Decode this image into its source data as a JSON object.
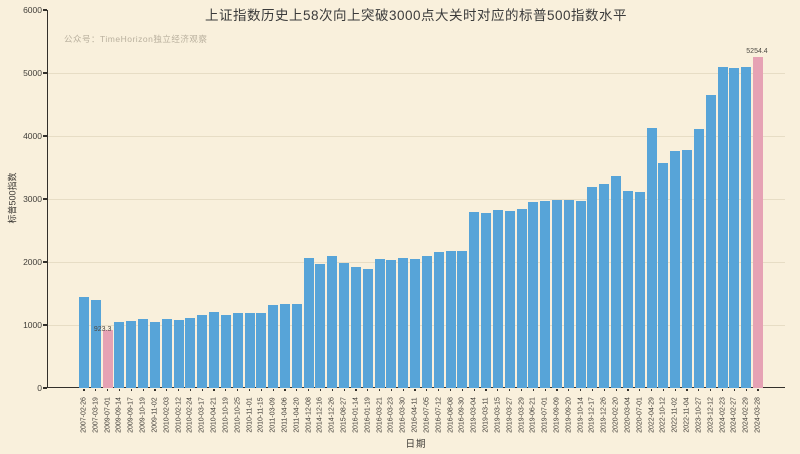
{
  "chart_data": {
    "type": "bar",
    "title": "上证指数历史上58次向上突破3000点大关时对应的标普500指数水平",
    "watermark": "公众号：TimeHorizon独立经济观察",
    "xlabel": "日期",
    "ylabel": "标普500指数",
    "ylim": [
      0,
      6000
    ],
    "yticks": [
      0,
      1000,
      2000,
      3000,
      4000,
      5000,
      6000
    ],
    "grid": "horizontal",
    "legend_position": "none",
    "categories": [
      "2007-02-26",
      "2007-03-19",
      "2009-07-01",
      "2009-09-14",
      "2009-09-17",
      "2009-10-19",
      "2009-11-02",
      "2010-02-03",
      "2010-02-12",
      "2010-02-24",
      "2010-03-17",
      "2010-04-21",
      "2010-10-19",
      "2010-10-25",
      "2010-11-01",
      "2010-11-15",
      "2011-03-09",
      "2011-04-06",
      "2011-04-20",
      "2014-12-08",
      "2014-12-16",
      "2014-12-26",
      "2015-08-27",
      "2016-01-14",
      "2016-01-19",
      "2016-03-21",
      "2016-03-23",
      "2016-03-30",
      "2016-04-11",
      "2016-07-05",
      "2016-07-12",
      "2016-08-08",
      "2016-09-30",
      "2019-03-04",
      "2019-03-11",
      "2019-03-15",
      "2019-03-27",
      "2019-03-29",
      "2019-06-21",
      "2019-07-01",
      "2019-09-09",
      "2019-09-20",
      "2019-10-14",
      "2019-12-17",
      "2019-12-26",
      "2020-02-20",
      "2020-03-04",
      "2020-07-01",
      "2022-04-29",
      "2022-10-12",
      "2022-11-02",
      "2022-11-04",
      "2023-10-27",
      "2023-12-12",
      "2024-02-23",
      "2024-02-27",
      "2024-02-29",
      "2024-03-28"
    ],
    "values": [
      1449.3,
      1402.1,
      923.3,
      1049.3,
      1065.5,
      1097.9,
      1042.2,
      1097.3,
      1075.5,
      1105.2,
      1166.2,
      1205.9,
      1165.9,
      1185.6,
      1184.4,
      1197.8,
      1320.0,
      1335.5,
      1330.4,
      2060.3,
      1972.7,
      2088.8,
      1987.7,
      1921.8,
      1881.3,
      2051.6,
      2036.7,
      2064.0,
      2042.0,
      2088.6,
      2152.1,
      2180.9,
      2168.3,
      2792.8,
      2783.3,
      2822.5,
      2805.4,
      2834.4,
      2950.5,
      2964.3,
      2978.4,
      2992.1,
      2966.2,
      3192.5,
      3239.9,
      3373.2,
      3130.1,
      3115.9,
      4131.9,
      3577.0,
      3759.7,
      3770.6,
      4117.4,
      4643.7,
      5088.8,
      5078.2,
      5096.3,
      5254.4
    ],
    "highlight_indices": [
      2,
      57
    ],
    "annotations": [
      {
        "index": 2,
        "text": "923.3",
        "dx": -5,
        "dy": 4
      },
      {
        "index": 57,
        "text": "5254.4",
        "dx": -1,
        "dy": -1
      }
    ],
    "colors": {
      "background": "#f9f0dc",
      "bar": "#57a4d8",
      "bar_highlight": "#e6a2b4",
      "axis": "#33302b",
      "grid": "#e7ddc5",
      "title": "#3b3b3b",
      "tick_label": "#403d38",
      "watermark": "#b9b09e",
      "annotation": "#4d4a44"
    }
  }
}
